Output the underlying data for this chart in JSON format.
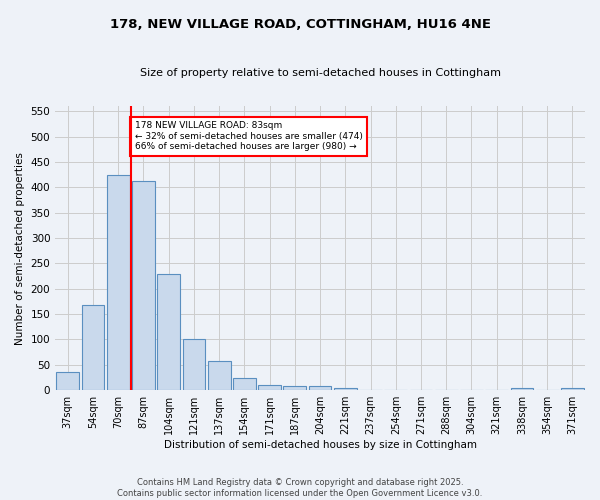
{
  "title1": "178, NEW VILLAGE ROAD, COTTINGHAM, HU16 4NE",
  "title2": "Size of property relative to semi-detached houses in Cottingham",
  "xlabel": "Distribution of semi-detached houses by size in Cottingham",
  "ylabel": "Number of semi-detached properties",
  "footnote1": "Contains HM Land Registry data © Crown copyright and database right 2025.",
  "footnote2": "Contains public sector information licensed under the Open Government Licence v3.0.",
  "categories": [
    "37sqm",
    "54sqm",
    "70sqm",
    "87sqm",
    "104sqm",
    "121sqm",
    "137sqm",
    "154sqm",
    "171sqm",
    "187sqm",
    "204sqm",
    "221sqm",
    "237sqm",
    "254sqm",
    "271sqm",
    "288sqm",
    "304sqm",
    "321sqm",
    "338sqm",
    "354sqm",
    "371sqm"
  ],
  "values": [
    35,
    168,
    425,
    413,
    230,
    101,
    57,
    25,
    10,
    8,
    8,
    4,
    0,
    0,
    0,
    0,
    0,
    0,
    4,
    0,
    4
  ],
  "bar_color": "#c9d9ec",
  "bar_edge_color": "#5a8fc0",
  "grid_color": "#cccccc",
  "bg_color": "#eef2f8",
  "red_line_x": 2.5,
  "annotation_label": "178 NEW VILLAGE ROAD: 83sqm",
  "annotation_line1": "← 32% of semi-detached houses are smaller (474)",
  "annotation_line2": "66% of semi-detached houses are larger (980) →",
  "ylim": [
    0,
    560
  ],
  "yticks": [
    0,
    50,
    100,
    150,
    200,
    250,
    300,
    350,
    400,
    450,
    500,
    550
  ]
}
